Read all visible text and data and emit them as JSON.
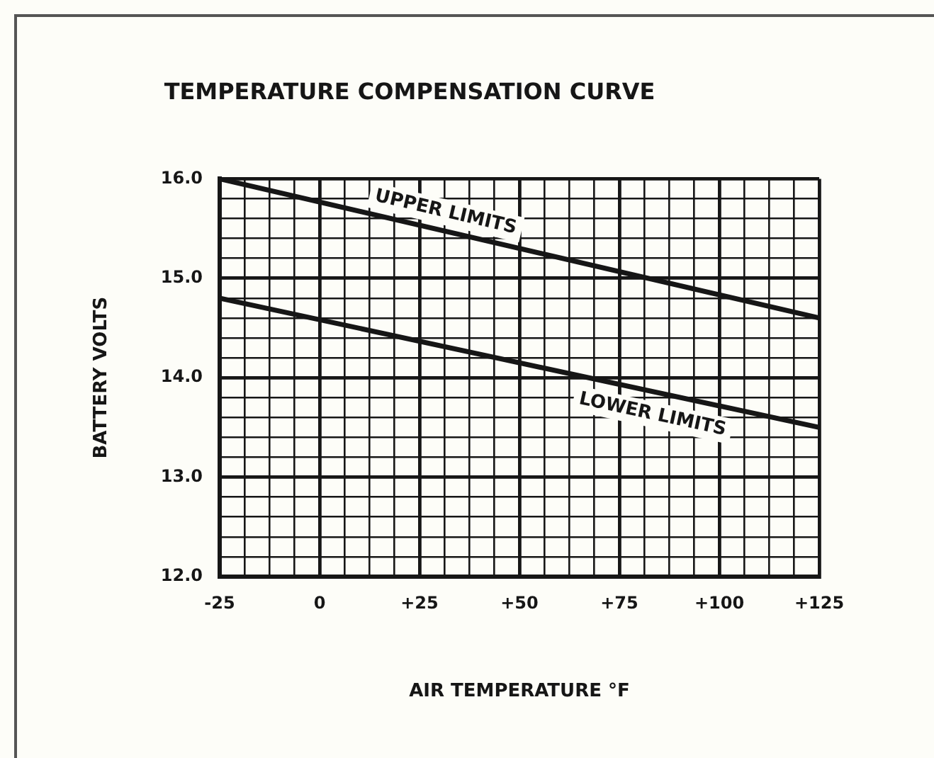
{
  "chart_data": {
    "type": "line",
    "title": "TEMPERATURE COMPENSATION CURVE",
    "xlabel": "AIR TEMPERATURE °F",
    "ylabel": "BATTERY VOLTS",
    "x": [
      -25,
      125
    ],
    "series": [
      {
        "name": "UPPER LIMITS",
        "color": "#161616",
        "values": [
          16.0,
          14.6
        ]
      },
      {
        "name": "LOWER LIMITS",
        "color": "#161616",
        "values": [
          14.8,
          13.5
        ]
      }
    ],
    "xlim": [
      -25,
      125
    ],
    "ylim": [
      12,
      16
    ],
    "xticks": [
      -25,
      {
        "value": -18.75,
        "label": null
      },
      {
        "value": -12.5,
        "label": null
      },
      {
        "value": -6.25,
        "label": null
      },
      0,
      {
        "value": 6.25,
        "label": null
      },
      {
        "value": 12.5,
        "label": null
      },
      {
        "value": 18.75,
        "label": null
      },
      {
        "value": 25,
        "label": "+25"
      },
      {
        "value": 31.25,
        "label": null
      },
      {
        "value": 37.5,
        "label": null
      },
      {
        "value": 43.75,
        "label": null
      },
      {
        "value": 50,
        "label": "+50"
      },
      {
        "value": 56.25,
        "label": null
      },
      {
        "value": 62.5,
        "label": null
      },
      {
        "value": 68.75,
        "label": null
      },
      {
        "value": 75,
        "label": "+75"
      },
      {
        "value": 81.25,
        "label": null
      },
      {
        "value": 87.5,
        "label": null
      },
      {
        "value": 93.75,
        "label": null
      },
      {
        "value": 100,
        "label": "+100"
      },
      {
        "value": 106.25,
        "label": null
      },
      {
        "value": 112.5,
        "label": null
      },
      {
        "value": 118.75,
        "label": null
      },
      {
        "value": 125,
        "label": "+125"
      }
    ],
    "yticks": [
      {
        "value": 12,
        "label": "12.0"
      },
      {
        "value": 12.2,
        "label": null
      },
      {
        "value": 12.4,
        "label": null
      },
      {
        "value": 12.6,
        "label": null
      },
      {
        "value": 12.8,
        "label": null
      },
      {
        "value": 13,
        "label": "13.0"
      },
      {
        "value": 13.2,
        "label": null
      },
      {
        "value": 13.4,
        "label": null
      },
      {
        "value": 13.6,
        "label": null
      },
      {
        "value": 13.8,
        "label": null
      },
      {
        "value": 14,
        "label": "14.0"
      },
      {
        "value": 14.2,
        "label": null
      },
      {
        "value": 14.4,
        "label": null
      },
      {
        "value": 14.6,
        "label": null
      },
      {
        "value": 14.8,
        "label": null
      },
      {
        "value": 15,
        "label": "15.0"
      },
      {
        "value": 15.2,
        "label": null
      },
      {
        "value": 15.4,
        "label": null
      },
      {
        "value": 15.6,
        "label": null
      },
      {
        "value": 15.8,
        "label": null
      },
      {
        "value": 16,
        "label": "16.0"
      }
    ],
    "grid": true,
    "marker": "none",
    "line_style": "solid"
  }
}
